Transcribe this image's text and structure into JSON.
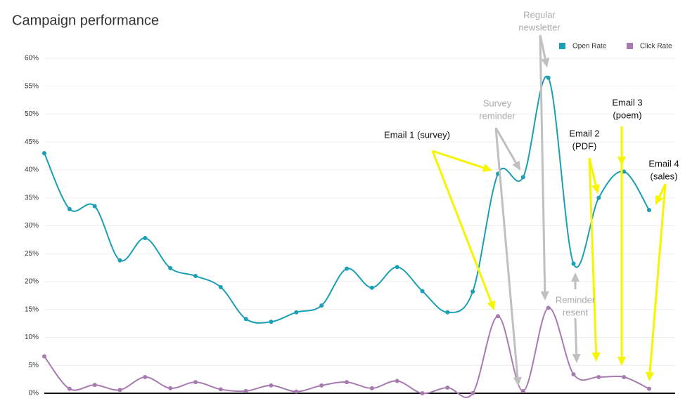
{
  "chart_data": {
    "type": "line",
    "title": "Campaign performance",
    "categories": [
      null,
      null,
      null,
      null,
      null,
      null,
      null,
      null,
      null,
      null,
      null,
      null,
      null,
      null,
      null,
      null,
      null,
      null,
      null,
      null,
      null,
      null,
      null,
      null,
      null
    ],
    "series": [
      {
        "name": "Open Rate",
        "color": "#1a9fb5",
        "values": [
          43,
          33,
          33.5,
          23.8,
          27.8,
          22.4,
          21,
          19,
          13.3,
          12.8,
          14.5,
          15.7,
          22.3,
          18.9,
          22.6,
          18.3,
          14.5,
          18.2,
          39.3,
          38.7,
          56.5,
          23.2,
          35,
          39.7,
          32.8
        ]
      },
      {
        "name": "Click Rate",
        "color": "#a77bb0",
        "values": [
          6.6,
          0.8,
          1.5,
          0.6,
          2.9,
          0.9,
          2.0,
          0.7,
          0.4,
          1.4,
          0.3,
          1.4,
          2.0,
          0.9,
          2.2,
          0,
          1.0,
          0,
          13.8,
          0.4,
          15.3,
          3.4,
          2.9,
          2.9,
          0.8
        ]
      }
    ],
    "ylim": [
      0,
      62
    ],
    "yticks": [
      {
        "value": 0,
        "label": "0%"
      },
      {
        "value": 5,
        "label": "5%"
      },
      {
        "value": 10,
        "label": "10%"
      },
      {
        "value": 15,
        "label": "15%"
      },
      {
        "value": 20,
        "label": "20%"
      },
      {
        "value": 25,
        "label": "25%"
      },
      {
        "value": 30,
        "label": "30%"
      },
      {
        "value": 35,
        "label": "35%"
      },
      {
        "value": 40,
        "label": "40%"
      },
      {
        "value": 45,
        "label": "45%"
      },
      {
        "value": 50,
        "label": "50%"
      },
      {
        "value": 55,
        "label": "55%"
      },
      {
        "value": 60,
        "label": "60%"
      }
    ],
    "grid": true,
    "legend": "top-right",
    "annotations": [
      {
        "lines": [
          "Email 1 (survey)"
        ],
        "color": "#111111",
        "arrow": "#f5f500"
      },
      {
        "lines": [
          "Survey",
          "reminder"
        ],
        "color": "#aaaaaa",
        "arrow": "#c0c0c0"
      },
      {
        "lines": [
          "Regular",
          "newsletter"
        ],
        "color": "#aaaaaa",
        "arrow": "#c0c0c0"
      },
      {
        "lines": [
          "Email 2",
          "(PDF)"
        ],
        "color": "#111111",
        "arrow": "#f5f500"
      },
      {
        "lines": [
          "Email 3",
          "(poem)"
        ],
        "color": "#111111",
        "arrow": "#f5f500"
      },
      {
        "lines": [
          "Email 4",
          "(sales)"
        ],
        "color": "#111111",
        "arrow": "#f5f500"
      },
      {
        "lines": [
          "Reminder",
          "resent"
        ],
        "color": "#aaaaaa",
        "arrow": "#c0c0c0"
      }
    ]
  }
}
